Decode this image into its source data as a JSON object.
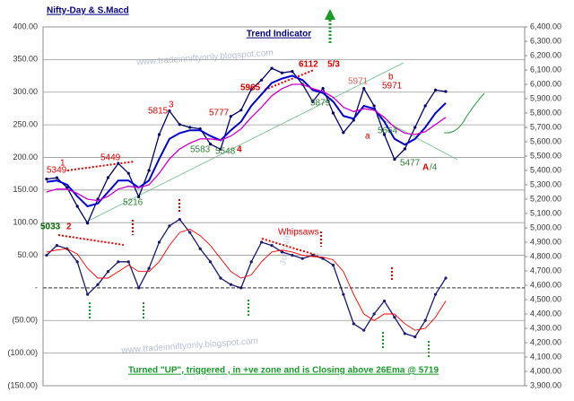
{
  "chart_data": {
    "type": "line",
    "title": "Nifty-Day & S.Macd",
    "subtitle": "Trend Indicator",
    "footnote": "Turned \"UP\", triggered , in +ve zone and is Closing  above 26Ema @ 5719",
    "watermarks": [
      "www.tradeinniftyonly.blogspot.com",
      "www.tradeinniftyonly.blogspot.com",
      "JustNifty"
    ],
    "annotations": [
      {
        "text": "5349",
        "color": "#e00000"
      },
      {
        "text": "1",
        "color": "#e00000"
      },
      {
        "text": "5449",
        "color": "#e00000"
      },
      {
        "text": "5033",
        "color": "#006600"
      },
      {
        "text": "2",
        "color": "#e00000"
      },
      {
        "text": "5216",
        "color": "#2e7d32"
      },
      {
        "text": "5815",
        "color": "#e00000"
      },
      {
        "text": "3",
        "color": "#e00000"
      },
      {
        "text": "5777",
        "color": "#e00000"
      },
      {
        "text": "5583",
        "color": "#2e7d32"
      },
      {
        "text": "5548",
        "color": "#2e7d32"
      },
      {
        "text": "4",
        "color": "#e00000"
      },
      {
        "text": "5965",
        "color": "#e00000"
      },
      {
        "text": "6112",
        "color": "#e00000"
      },
      {
        "text": "5/3",
        "color": "#e00000"
      },
      {
        "text": "5971",
        "color": "#e06060"
      },
      {
        "text": "5879",
        "color": "#2e7d32"
      },
      {
        "text": "5971",
        "color": "#e00000"
      },
      {
        "text": "b",
        "color": "#e00000"
      },
      {
        "text": "a",
        "color": "#e00000"
      },
      {
        "text": "5664",
        "color": "#2e7d32"
      },
      {
        "text": "5477",
        "color": "#2e7d32"
      },
      {
        "text": "A",
        "color": "#e00000"
      },
      {
        "text": "/4",
        "color": "#2e7d32"
      },
      {
        "text": "Whipsaws",
        "color": "#e00000"
      }
    ],
    "categories": [
      null,
      null,
      null,
      null,
      null,
      null,
      null,
      null,
      null,
      null,
      null,
      null,
      null,
      null,
      null,
      null,
      null,
      null,
      null,
      null,
      null,
      null,
      null,
      null,
      null,
      null,
      null,
      null,
      null,
      null,
      null,
      null,
      null,
      null,
      null,
      null,
      null,
      null,
      null,
      null
    ],
    "series": [
      {
        "color": "#000066",
        "axis": "y2",
        "values": [
          5340,
          5349,
          5280,
          5150,
          5033,
          5200,
          5350,
          5449,
          5380,
          5216,
          5400,
          5650,
          5815,
          5720,
          5700,
          5690,
          5583,
          5548,
          5777,
          5820,
          5965,
          6030,
          6112,
          6080,
          6090,
          6000,
          5879,
          5971,
          5800,
          5664,
          5750,
          5971,
          5850,
          5650,
          5477,
          5550,
          5700,
          5850,
          5960,
          5950
        ]
      },
      {
        "color": "#0000cc",
        "axis": "y2",
        "values": [
          5320,
          5330,
          5300,
          5220,
          5150,
          5170,
          5250,
          5330,
          5330,
          5280,
          5330,
          5480,
          5620,
          5660,
          5680,
          5680,
          5640,
          5610,
          5680,
          5740,
          5850,
          5930,
          6010,
          6040,
          6060,
          6030,
          5960,
          5940,
          5880,
          5780,
          5760,
          5850,
          5830,
          5740,
          5620,
          5580,
          5620,
          5700,
          5800,
          5870
        ]
      },
      {
        "color": "#cc00cc",
        "axis": "y2",
        "values": [
          5250,
          5270,
          5270,
          5240,
          5200,
          5190,
          5220,
          5270,
          5290,
          5280,
          5300,
          5380,
          5480,
          5550,
          5590,
          5620,
          5620,
          5610,
          5640,
          5690,
          5770,
          5840,
          5920,
          5970,
          6000,
          6000,
          5970,
          5950,
          5910,
          5840,
          5810,
          5830,
          5820,
          5770,
          5700,
          5660,
          5650,
          5670,
          5720,
          5770
        ]
      },
      {
        "color": "#1a1a6e",
        "values": [
          50,
          65,
          60,
          40,
          -10,
          5,
          25,
          40,
          40,
          0,
          30,
          70,
          95,
          105,
          85,
          60,
          40,
          15,
          5,
          0,
          40,
          70,
          65,
          55,
          50,
          45,
          50,
          45,
          35,
          -10,
          -55,
          -65,
          -40,
          -20,
          -45,
          -70,
          -75,
          -50,
          -10,
          15
        ]
      },
      {
        "color": "#ff0000",
        "values": [
          55,
          58,
          60,
          52,
          30,
          15,
          15,
          25,
          35,
          25,
          25,
          40,
          65,
          85,
          90,
          80,
          65,
          45,
          25,
          15,
          20,
          40,
          55,
          58,
          55,
          50,
          48,
          47,
          43,
          25,
          -10,
          -40,
          -50,
          -40,
          -40,
          -55,
          -65,
          -62,
          -45,
          -20
        ]
      }
    ],
    "ylim": [
      -150,
      400
    ],
    "yticks": [
      {
        "value": 400,
        "label": "400.00"
      },
      {
        "value": 350,
        "label": "350.00"
      },
      {
        "value": 300,
        "label": "300.00"
      },
      {
        "value": 250,
        "label": "250.00"
      },
      {
        "value": 200,
        "label": "200.00"
      },
      {
        "value": 150,
        "label": "150.00"
      },
      {
        "value": 100,
        "label": "100.00"
      },
      {
        "value": 50,
        "label": "50.00"
      },
      {
        "value": 0,
        "label": "-"
      },
      {
        "value": -50,
        "label": "(50.00)"
      },
      {
        "value": -100,
        "label": "(100.00)"
      },
      {
        "value": -150,
        "label": "(150.00)"
      }
    ],
    "y2lim": [
      3900,
      6400
    ],
    "y2ticks": [
      {
        "value": 6400,
        "label": "6,400.00"
      },
      {
        "value": 6300,
        "label": "6,300.00"
      },
      {
        "value": 6200,
        "label": "6,200.00"
      },
      {
        "value": 6100,
        "label": "6,100.00"
      },
      {
        "value": 6000,
        "label": "6,000.00"
      },
      {
        "value": 5900,
        "label": "5,900.00"
      },
      {
        "value": 5800,
        "label": "5,800.00"
      },
      {
        "value": 5700,
        "label": "5,700.00"
      },
      {
        "value": 5600,
        "label": "5,600.00"
      },
      {
        "value": 5500,
        "label": "5,500.00"
      },
      {
        "value": 5400,
        "label": "5,400.00"
      },
      {
        "value": 5300,
        "label": "5,300.00"
      },
      {
        "value": 5200,
        "label": "5,200.00"
      },
      {
        "value": 5100,
        "label": "5,100.00"
      },
      {
        "value": 5000,
        "label": "5,000.00"
      },
      {
        "value": 4900,
        "label": "4,900.00"
      },
      {
        "value": 4800,
        "label": "4,800.00"
      },
      {
        "value": 4700,
        "label": "4,700.00"
      },
      {
        "value": 4600,
        "label": "4,600.00"
      },
      {
        "value": 4500,
        "label": "4,500.00"
      },
      {
        "value": 4400,
        "label": "4,400.00"
      },
      {
        "value": 4300,
        "label": "4,300.00"
      },
      {
        "value": 4200,
        "label": "4,200.00"
      },
      {
        "value": 4100,
        "label": "4,100.00"
      },
      {
        "value": 4000,
        "label": "4,000.00"
      },
      {
        "value": 3900,
        "label": "3,900.00"
      }
    ],
    "grid": true
  }
}
